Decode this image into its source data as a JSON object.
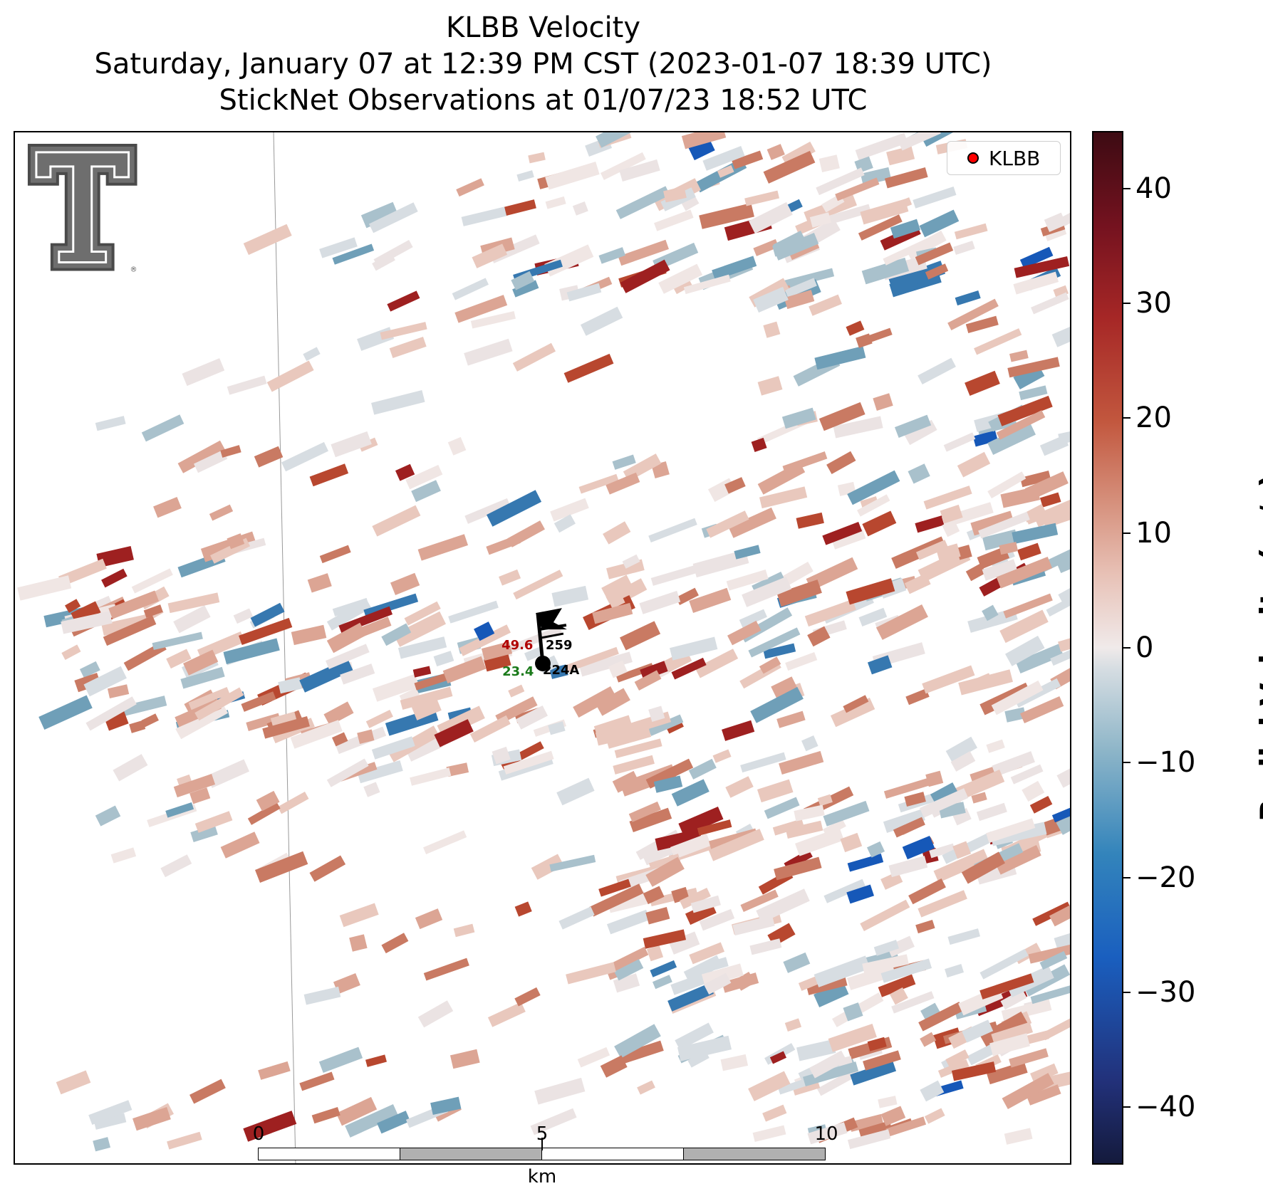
{
  "title": {
    "line1": "KLBB Velocity",
    "line2": "Saturday, January 07 at 12:39 PM CST (2023-01-07 18:39 UTC)",
    "line3": "StickNet Observations at 01/07/23 18:52 UTC"
  },
  "legend": {
    "label": "KLBB",
    "marker_color": "#ff0000"
  },
  "logo": {
    "icon": "texas-tech-double-t-logo",
    "text": "®"
  },
  "colorbar": {
    "label": "Radial Velocity (m/s)",
    "range": [
      -45,
      45
    ],
    "ticks": [
      "40",
      "30",
      "20",
      "10",
      "0",
      "−10",
      "−20",
      "−30",
      "−40"
    ],
    "colors": {
      "negative_max": "#141a3c",
      "negative": "#1a5fbf",
      "neutral": "#f0eaea",
      "positive": "#c2573e",
      "positive_max": "#3d0b13"
    }
  },
  "scalebar": {
    "labels": [
      "0",
      "5",
      "10"
    ],
    "unit": "km"
  },
  "station": {
    "id_upper": "259",
    "id_lower": "224A",
    "temperature": "49.6",
    "dewpoint": "23.4",
    "temperature_color": "#b00000",
    "dewpoint_color": "#1a7a1a",
    "wind_icon": "wind-barb-icon"
  }
}
